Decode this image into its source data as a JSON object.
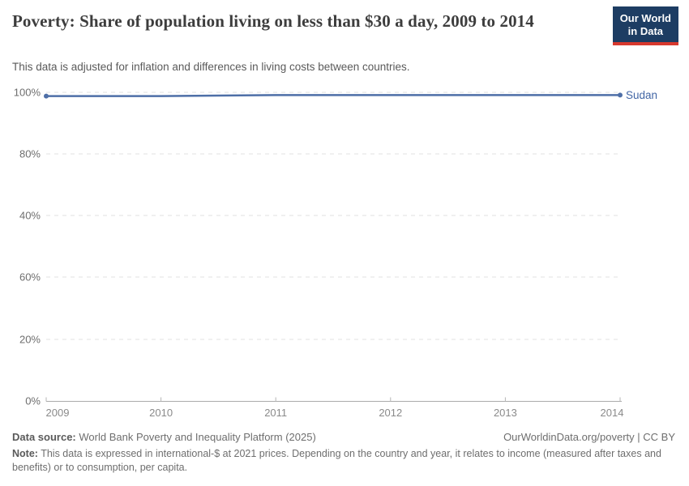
{
  "header": {
    "title": "Poverty: Share of population living on less than $30 a day, 2009 to 2014",
    "subtitle": "This data is adjusted for inflation and differences in living costs between countries.",
    "logo": {
      "line1": "Our World",
      "line2": "in Data",
      "bg_color": "#1d3d63",
      "accent_color": "#d7382e"
    }
  },
  "chart_data": {
    "type": "line",
    "title": "Poverty: Share of population living on less than $30 a day, 2009 to 2014",
    "x": [
      2009,
      2010,
      2011,
      2012,
      2013,
      2014
    ],
    "series": [
      {
        "name": "Sudan",
        "color": "#4e6fa7",
        "label_color": "#4266a5",
        "values": [
          98.8,
          98.8,
          99.1,
          99.1,
          99.1,
          99.1
        ]
      }
    ],
    "xlabel": "",
    "ylabel": "",
    "xlim": [
      2009,
      2014
    ],
    "ylim": [
      0,
      100
    ],
    "yticks": [
      "0%",
      "20%",
      "40%",
      "60%",
      "80%",
      "100%"
    ],
    "xticks": [
      "2009",
      "2010",
      "2011",
      "2012",
      "2013",
      "2014"
    ],
    "grid": "horizontal-dashed",
    "legend_position": "end-of-line-label"
  },
  "footer": {
    "datasource_label": "Data source:",
    "datasource_value": "World Bank Poverty and Inequality Platform (2025)",
    "rights": "OurWorldinData.org/poverty | CC BY",
    "note_label": "Note:",
    "note_value": "This data is expressed in international-$ at 2021 prices. Depending on the country and year, it relates to income (measured after taxes and benefits) or to consumption, per capita."
  }
}
